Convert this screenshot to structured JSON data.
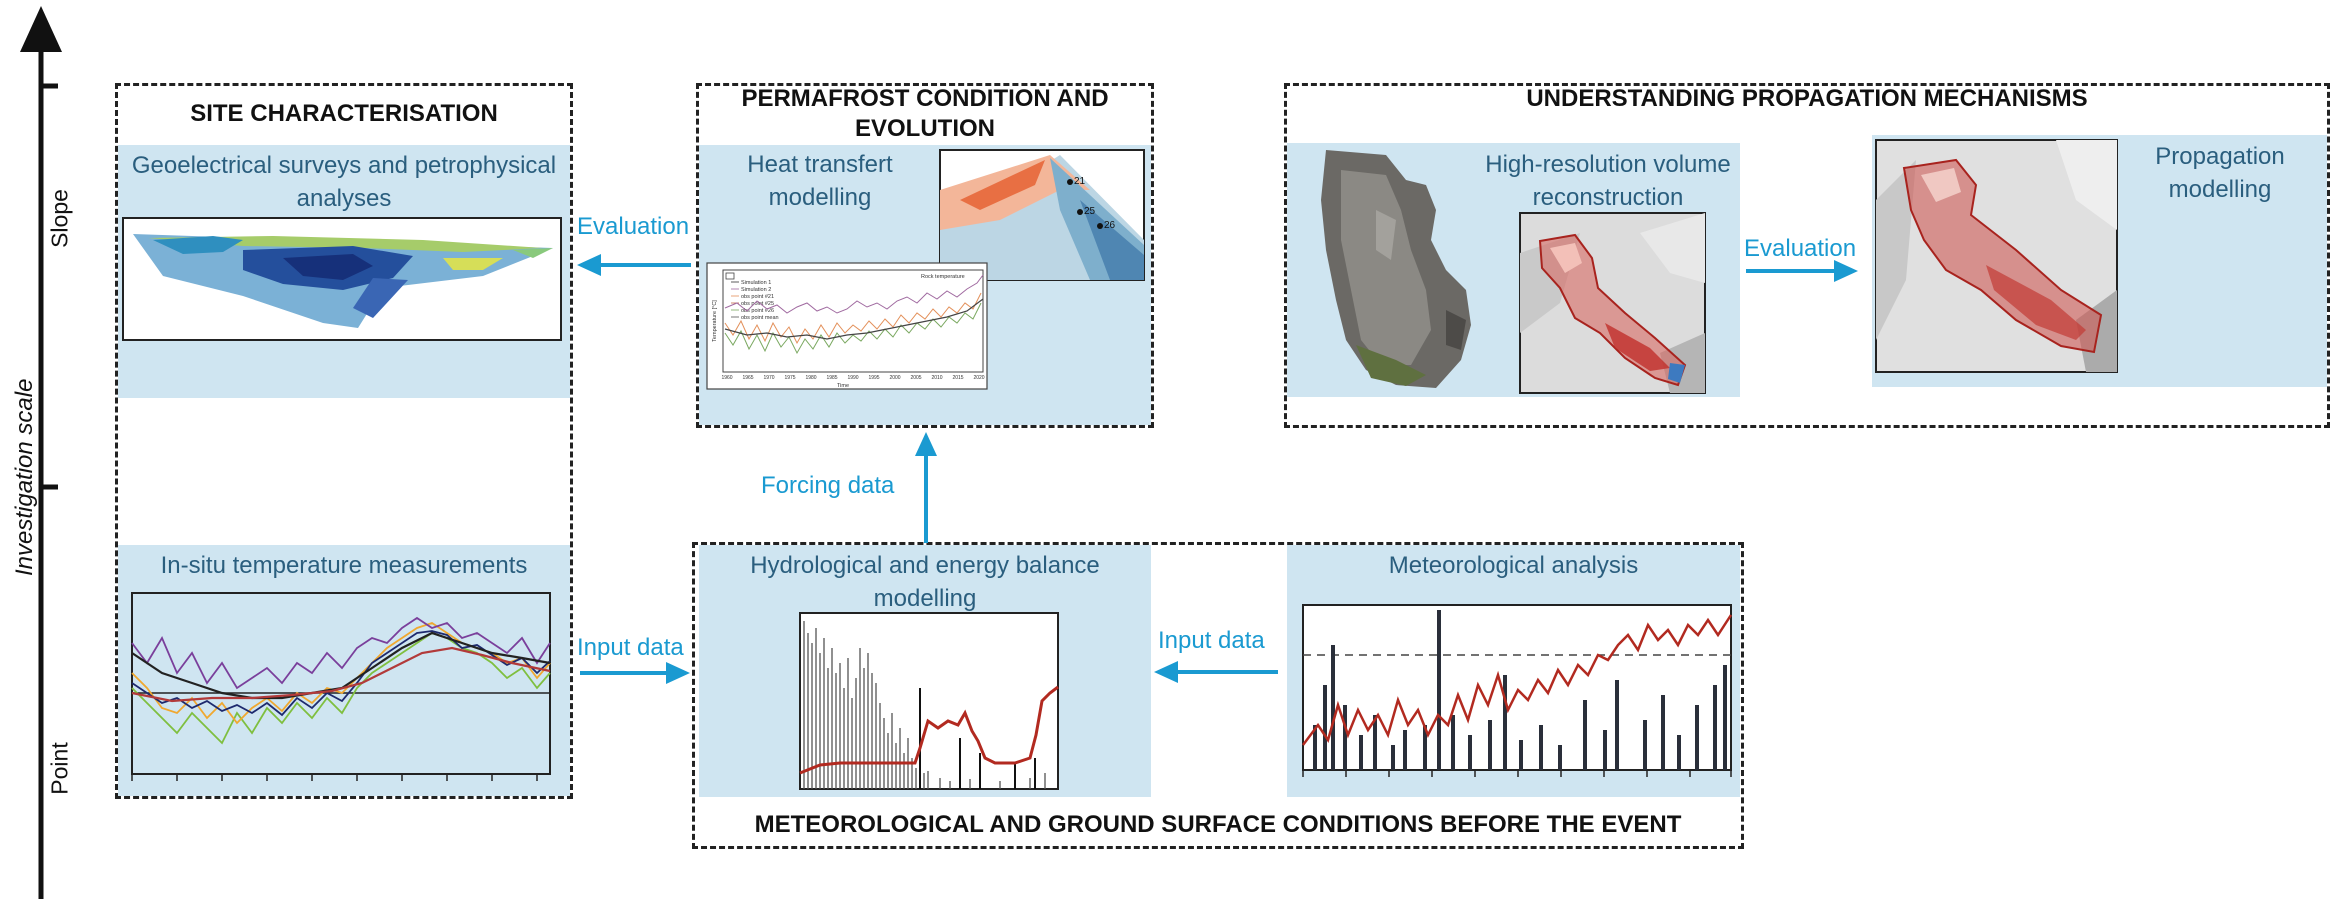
{
  "axis": {
    "label": "Investigation scale",
    "top_level": "Slope",
    "bottom_level": "Point"
  },
  "boxes": {
    "site": {
      "title": "SITE CHARACTERISATION"
    },
    "permafrost": {
      "title": "PERMAFROST CONDITION AND EVOLUTION"
    },
    "propagation": {
      "title": "UNDERSTANDING PROPAGATION MECHANISMS"
    },
    "meteo": {
      "title": "METEOROLOGICAL AND GROUND SURFACE CONDITIONS BEFORE THE EVENT"
    }
  },
  "panels": {
    "geoelectrical": "Geoelectrical surveys and petrophysical analyses",
    "heat_transfer": "Heat transfert modelling",
    "high_res": "High-resolution volume reconstruction",
    "propagation": "Propagation modelling",
    "insitu": "In-situ temperature measurements",
    "hydro": "Hydrological and energy balance modelling",
    "meteo_analysis": "Meteorological analysis"
  },
  "arrows": {
    "eval_left": "Evaluation",
    "eval_right": "Evaluation",
    "forcing": "Forcing data",
    "input_left": "Input data",
    "input_right": "Input data"
  },
  "heat_chart": {
    "legend": [
      "Simulation 1",
      "Simulation 2",
      "obs point #21",
      "obs point #25",
      "obs point #26",
      "obs point mean"
    ],
    "corner_label": "Rock temperature",
    "xlabel": "Time",
    "xticks": [
      "1960",
      "1965",
      "1970",
      "1975",
      "1980",
      "1985",
      "1990",
      "1995",
      "2000",
      "2005",
      "2010",
      "2015",
      "2020"
    ],
    "ylabel": "Temperature [°C]"
  },
  "peak_points": [
    "21",
    "25",
    "26"
  ],
  "colors": {
    "panel": "#cfe5f1",
    "arrow": "#1a9ad1",
    "panel_text": "#2a5e7e",
    "red_series": "#b22a20"
  }
}
